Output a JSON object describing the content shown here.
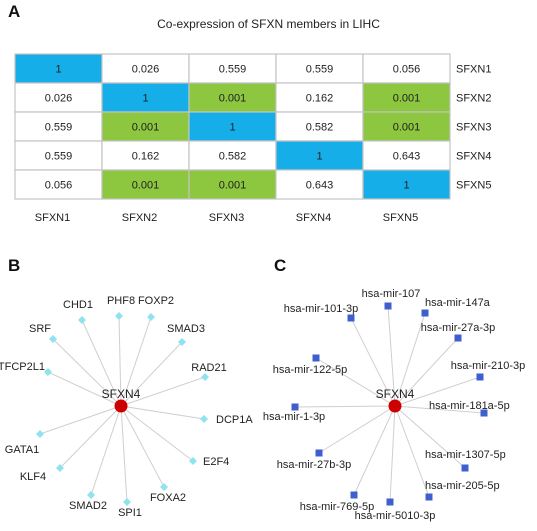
{
  "panels": {
    "a": "A",
    "b": "B",
    "c": "C"
  },
  "title": "Co-expression of SFXN members in LIHC",
  "colors": {
    "diagonal": "#16aee8",
    "significant": "#8dc63f",
    "plain": "#ffffff",
    "grid": "#c4c4c4",
    "hub": "#cc0000",
    "tf_node": "#8ee3ef",
    "mir_node": "#3f5fcf",
    "edge": "#cfcfcf"
  },
  "chart_data": {
    "type": "table",
    "rows": [
      "SFXN1",
      "SFXN2",
      "SFXN3",
      "SFXN4",
      "SFXN5"
    ],
    "columns": [
      "SFXN1",
      "SFXN2",
      "SFXN3",
      "SFXN4",
      "SFXN5"
    ],
    "values": [
      [
        "1",
        "0.026",
        "0.559",
        "0.559",
        "0.056"
      ],
      [
        "0.026",
        "1",
        "0.001",
        "0.162",
        "0.001"
      ],
      [
        "0.559",
        "0.001",
        "1",
        "0.582",
        "0.001"
      ],
      [
        "0.559",
        "0.162",
        "0.582",
        "1",
        "0.643"
      ],
      [
        "0.056",
        "0.001",
        "0.001",
        "0.643",
        "1"
      ]
    ]
  },
  "network_b": {
    "hub": "SFXN4",
    "nodes": [
      "PHF8",
      "FOXP2",
      "SMAD3",
      "RAD21",
      "DCP1A",
      "E2F4",
      "FOXA2",
      "SPI1",
      "SMAD2",
      "KLF4",
      "GATA1",
      "TFCP2L1",
      "SRF",
      "CHD1"
    ]
  },
  "network_c": {
    "hub": "SFXN4",
    "nodes": [
      "hsa-mir-107",
      "hsa-mir-147a",
      "hsa-mir-27a-3p",
      "hsa-mir-210-3p",
      "hsa-mir-181a-5p",
      "hsa-mir-1307-5p",
      "hsa-mir-205-5p",
      "hsa-mir-5010-3p",
      "hsa-mir-769-5p",
      "hsa-mir-27b-3p",
      "hsa-mir-1-3p",
      "hsa-mir-122-5p",
      "hsa-mir-101-3p"
    ]
  }
}
